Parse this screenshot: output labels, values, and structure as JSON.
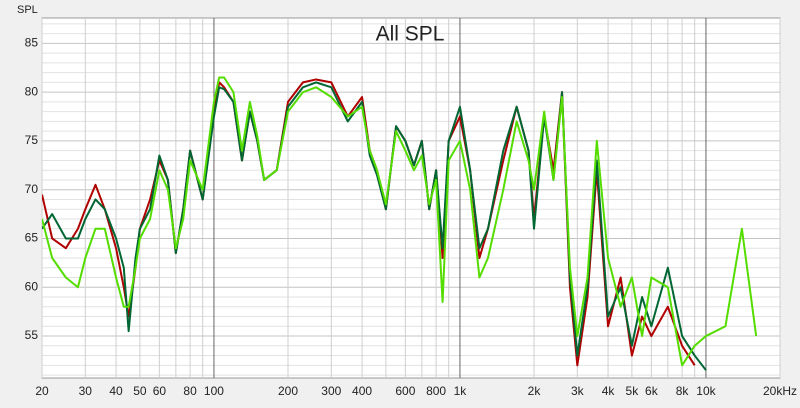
{
  "chart_data": {
    "type": "line",
    "title": "All SPL",
    "y_label": "SPL",
    "xscale": "log",
    "xlim": [
      20,
      20000
    ],
    "ylim": [
      50.7,
      87.6
    ],
    "xticks": [
      20,
      30,
      40,
      50,
      60,
      80,
      100,
      200,
      300,
      400,
      600,
      800,
      {
        "value": 1000,
        "label": "1k"
      },
      {
        "value": 2000,
        "label": "2k"
      },
      {
        "value": 3000,
        "label": "3k"
      },
      {
        "value": 4000,
        "label": "4k"
      },
      {
        "value": 5000,
        "label": "5k"
      },
      {
        "value": 6000,
        "label": "6k"
      },
      {
        "value": 8000,
        "label": "8k"
      },
      {
        "value": 10000,
        "label": "10k"
      },
      {
        "value": 20000,
        "label": "20kHz"
      }
    ],
    "xminorticks": [
      70,
      90,
      500,
      700,
      900,
      7000,
      9000
    ],
    "yticks": [
      55,
      60,
      65,
      70,
      75,
      80,
      85
    ],
    "yminorticks": [
      51,
      52,
      53,
      54,
      56,
      57,
      58,
      59,
      61,
      62,
      63,
      64,
      66,
      67,
      68,
      69,
      71,
      72,
      73,
      74,
      76,
      77,
      78,
      79,
      81,
      82,
      83,
      84,
      86,
      87
    ],
    "grid": true,
    "x": [
      20,
      22,
      25,
      28,
      30,
      33,
      36,
      40,
      43,
      45,
      48,
      50,
      55,
      60,
      65,
      70,
      75,
      80,
      90,
      100,
      105,
      110,
      120,
      130,
      140,
      150,
      160,
      180,
      200,
      230,
      260,
      300,
      350,
      400,
      430,
      460,
      500,
      550,
      600,
      650,
      700,
      750,
      800,
      850,
      900,
      1000,
      1100,
      1200,
      1300,
      1500,
      1700,
      1900,
      2000,
      2200,
      2400,
      2600,
      2800,
      3000,
      3300,
      3600,
      4000,
      4500,
      5000,
      5500,
      6000,
      7000,
      8000,
      9000,
      10000,
      12000,
      14000,
      16000
    ],
    "series": [
      {
        "color": "#b00000",
        "values": [
          69.5,
          65,
          64,
          66,
          68,
          70.5,
          68,
          64,
          60,
          57,
          62,
          66,
          69,
          73,
          71,
          63.5,
          68,
          74,
          69,
          78,
          81,
          80.5,
          79,
          73,
          78,
          75,
          71,
          72,
          79,
          81,
          81.3,
          81,
          77.5,
          79.5,
          74,
          72,
          68,
          76.5,
          75,
          72.5,
          75,
          68,
          72,
          63,
          75,
          77.5,
          72,
          63,
          66,
          73,
          78.5,
          74,
          67,
          77.5,
          72,
          80,
          60,
          52,
          59,
          72,
          56,
          61,
          53,
          57,
          55,
          58,
          54,
          52,
          null,
          null,
          null,
          null
        ]
      },
      {
        "color": "#006633",
        "values": [
          66,
          67.5,
          65,
          65,
          67,
          69,
          68,
          65,
          62,
          55.5,
          63,
          66,
          68,
          73.5,
          71,
          63.5,
          68,
          74,
          69,
          77.5,
          80.5,
          80.3,
          79,
          73,
          78,
          75,
          71,
          72,
          78.5,
          80.5,
          81,
          80.5,
          77,
          79,
          73.5,
          71.5,
          68,
          76.5,
          75,
          72.5,
          75,
          68,
          72,
          64,
          75,
          78.5,
          72,
          64,
          66,
          74,
          78.5,
          74,
          66,
          77.5,
          71,
          80,
          61,
          53,
          60,
          73,
          57,
          60,
          54,
          59,
          56,
          62,
          55,
          53,
          51.5,
          null,
          null,
          null
        ]
      },
      {
        "color": "#55dd00",
        "values": [
          67,
          63,
          61,
          60,
          63,
          66,
          66,
          61,
          58,
          58,
          62,
          65,
          67,
          72,
          70,
          64,
          67,
          73,
          70,
          79,
          81.5,
          81.5,
          80,
          74,
          79,
          75.5,
          71,
          72,
          78,
          80,
          80.5,
          79.5,
          77.5,
          78.5,
          74,
          72,
          68.5,
          76,
          74,
          72,
          73.5,
          68.5,
          71,
          58.5,
          73,
          75,
          70,
          61,
          63,
          70,
          77,
          73,
          70,
          78,
          71,
          79.5,
          62,
          55,
          61,
          75,
          63,
          58,
          61,
          55,
          61,
          60,
          52,
          54,
          55,
          56,
          66,
          55
        ]
      }
    ]
  }
}
